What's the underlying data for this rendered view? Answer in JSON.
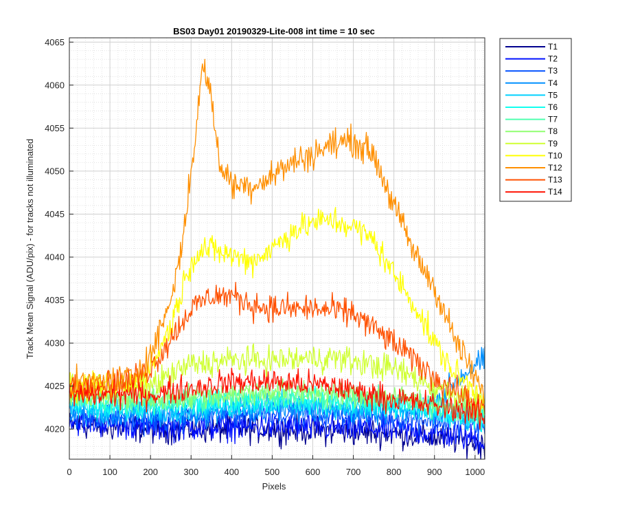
{
  "chart_data": {
    "type": "line",
    "title": "BS03 Day01 20190329-Lite-008 int time = 10 sec",
    "xlabel": "Pixels",
    "ylabel": "Track Mean Signal (ADU/pix) - for tracks not illuminated",
    "xlim": [
      0,
      1024
    ],
    "ylim": [
      4016.5,
      4065.5
    ],
    "xticks": [
      0,
      100,
      200,
      300,
      400,
      500,
      600,
      700,
      800,
      900,
      1000
    ],
    "yticks": [
      4020,
      4025,
      4030,
      4035,
      4040,
      4045,
      4050,
      4055,
      4060,
      4065
    ],
    "grid": true,
    "legend_position": "outside-top-right",
    "series": [
      {
        "name": "T1",
        "color": "#00008f",
        "noise": 1.6,
        "profile": [
          [
            0,
            4020.5
          ],
          [
            200,
            4020
          ],
          [
            500,
            4020
          ],
          [
            800,
            4019.5
          ],
          [
            1000,
            4018.5
          ],
          [
            1024,
            4018
          ]
        ]
      },
      {
        "name": "T2",
        "color": "#0010ff",
        "noise": 1.6,
        "profile": [
          [
            0,
            4021
          ],
          [
            200,
            4020.3
          ],
          [
            500,
            4020.3
          ],
          [
            800,
            4020
          ],
          [
            1000,
            4019
          ],
          [
            1024,
            4018.5
          ]
        ]
      },
      {
        "name": "T3",
        "color": "#0050ff",
        "noise": 1.5,
        "profile": [
          [
            0,
            4021.5
          ],
          [
            200,
            4021
          ],
          [
            500,
            4022
          ],
          [
            800,
            4021.5
          ],
          [
            1000,
            4020.5
          ],
          [
            1024,
            4020
          ]
        ]
      },
      {
        "name": "T4",
        "color": "#0090ff",
        "noise": 1.5,
        "profile": [
          [
            0,
            4022
          ],
          [
            200,
            4021.5
          ],
          [
            500,
            4022.5
          ],
          [
            850,
            4022
          ],
          [
            900,
            4023
          ],
          [
            950,
            4025.5
          ],
          [
            1000,
            4027.5
          ],
          [
            1024,
            4028
          ]
        ]
      },
      {
        "name": "T5",
        "color": "#00d0ff",
        "noise": 1.4,
        "profile": [
          [
            0,
            4022.5
          ],
          [
            200,
            4022
          ],
          [
            500,
            4023
          ],
          [
            800,
            4022.3
          ],
          [
            1000,
            4021
          ],
          [
            1024,
            4020.5
          ]
        ]
      },
      {
        "name": "T6",
        "color": "#10ffef",
        "noise": 1.4,
        "profile": [
          [
            0,
            4023
          ],
          [
            200,
            4022.5
          ],
          [
            500,
            4023.5
          ],
          [
            800,
            4022.8
          ],
          [
            1000,
            4021.5
          ],
          [
            1024,
            4021
          ]
        ]
      },
      {
        "name": "T7",
        "color": "#50ffaf",
        "noise": 1.4,
        "profile": [
          [
            0,
            4023.5
          ],
          [
            200,
            4023
          ],
          [
            500,
            4024
          ],
          [
            800,
            4023.3
          ],
          [
            1000,
            4022
          ],
          [
            1024,
            4021.5
          ]
        ]
      },
      {
        "name": "T8",
        "color": "#90ff70",
        "noise": 1.4,
        "profile": [
          [
            0,
            4024
          ],
          [
            200,
            4023.5
          ],
          [
            500,
            4024.5
          ],
          [
            800,
            4023.8
          ],
          [
            1000,
            4022.5
          ],
          [
            1024,
            4022
          ]
        ]
      },
      {
        "name": "T9",
        "color": "#cfff30",
        "noise": 1.6,
        "profile": [
          [
            0,
            4025
          ],
          [
            200,
            4025
          ],
          [
            300,
            4027.5
          ],
          [
            400,
            4028
          ],
          [
            500,
            4028
          ],
          [
            650,
            4028.3
          ],
          [
            800,
            4027
          ],
          [
            900,
            4025
          ],
          [
            1000,
            4023.5
          ],
          [
            1024,
            4023
          ]
        ]
      },
      {
        "name": "T10",
        "color": "#ffff00",
        "noise": 1.6,
        "profile": [
          [
            0,
            4024.5
          ],
          [
            150,
            4025
          ],
          [
            200,
            4027
          ],
          [
            250,
            4032
          ],
          [
            300,
            4039.5
          ],
          [
            330,
            4041
          ],
          [
            380,
            4040.5
          ],
          [
            450,
            4039.5
          ],
          [
            500,
            4041
          ],
          [
            550,
            4043
          ],
          [
            600,
            4044
          ],
          [
            650,
            4044.3
          ],
          [
            700,
            4043.5
          ],
          [
            750,
            4042
          ],
          [
            800,
            4038
          ],
          [
            850,
            4034.5
          ],
          [
            900,
            4030
          ],
          [
            950,
            4026.5
          ],
          [
            1000,
            4024.5
          ],
          [
            1024,
            4023.5
          ]
        ]
      },
      {
        "name": "T12",
        "color": "#ff8f00",
        "noise": 1.7,
        "profile": [
          [
            0,
            4025
          ],
          [
            150,
            4026
          ],
          [
            200,
            4028.5
          ],
          [
            250,
            4035
          ],
          [
            280,
            4042
          ],
          [
            310,
            4054
          ],
          [
            330,
            4062.5
          ],
          [
            345,
            4060
          ],
          [
            370,
            4051
          ],
          [
            400,
            4048.5
          ],
          [
            450,
            4048.3
          ],
          [
            500,
            4049.5
          ],
          [
            550,
            4051
          ],
          [
            600,
            4052
          ],
          [
            650,
            4053.2
          ],
          [
            700,
            4053.5
          ],
          [
            750,
            4052
          ],
          [
            800,
            4046
          ],
          [
            850,
            4040.5
          ],
          [
            900,
            4036.5
          ],
          [
            950,
            4030.5
          ],
          [
            1000,
            4026
          ],
          [
            1024,
            4023.5
          ]
        ]
      },
      {
        "name": "T13",
        "color": "#ff5000",
        "noise": 1.6,
        "profile": [
          [
            0,
            4025
          ],
          [
            150,
            4025.5
          ],
          [
            200,
            4027
          ],
          [
            250,
            4030.5
          ],
          [
            300,
            4034
          ],
          [
            350,
            4035.5
          ],
          [
            400,
            4035.5
          ],
          [
            450,
            4034.5
          ],
          [
            500,
            4034
          ],
          [
            600,
            4034
          ],
          [
            700,
            4033.5
          ],
          [
            800,
            4030
          ],
          [
            900,
            4026
          ],
          [
            1000,
            4023
          ],
          [
            1024,
            4022
          ]
        ]
      },
      {
        "name": "T14",
        "color": "#ff1000",
        "noise": 1.5,
        "profile": [
          [
            0,
            4024
          ],
          [
            200,
            4024
          ],
          [
            400,
            4025.5
          ],
          [
            500,
            4025.5
          ],
          [
            650,
            4025
          ],
          [
            800,
            4023.5
          ],
          [
            1000,
            4022
          ],
          [
            1024,
            4021
          ]
        ]
      }
    ]
  }
}
